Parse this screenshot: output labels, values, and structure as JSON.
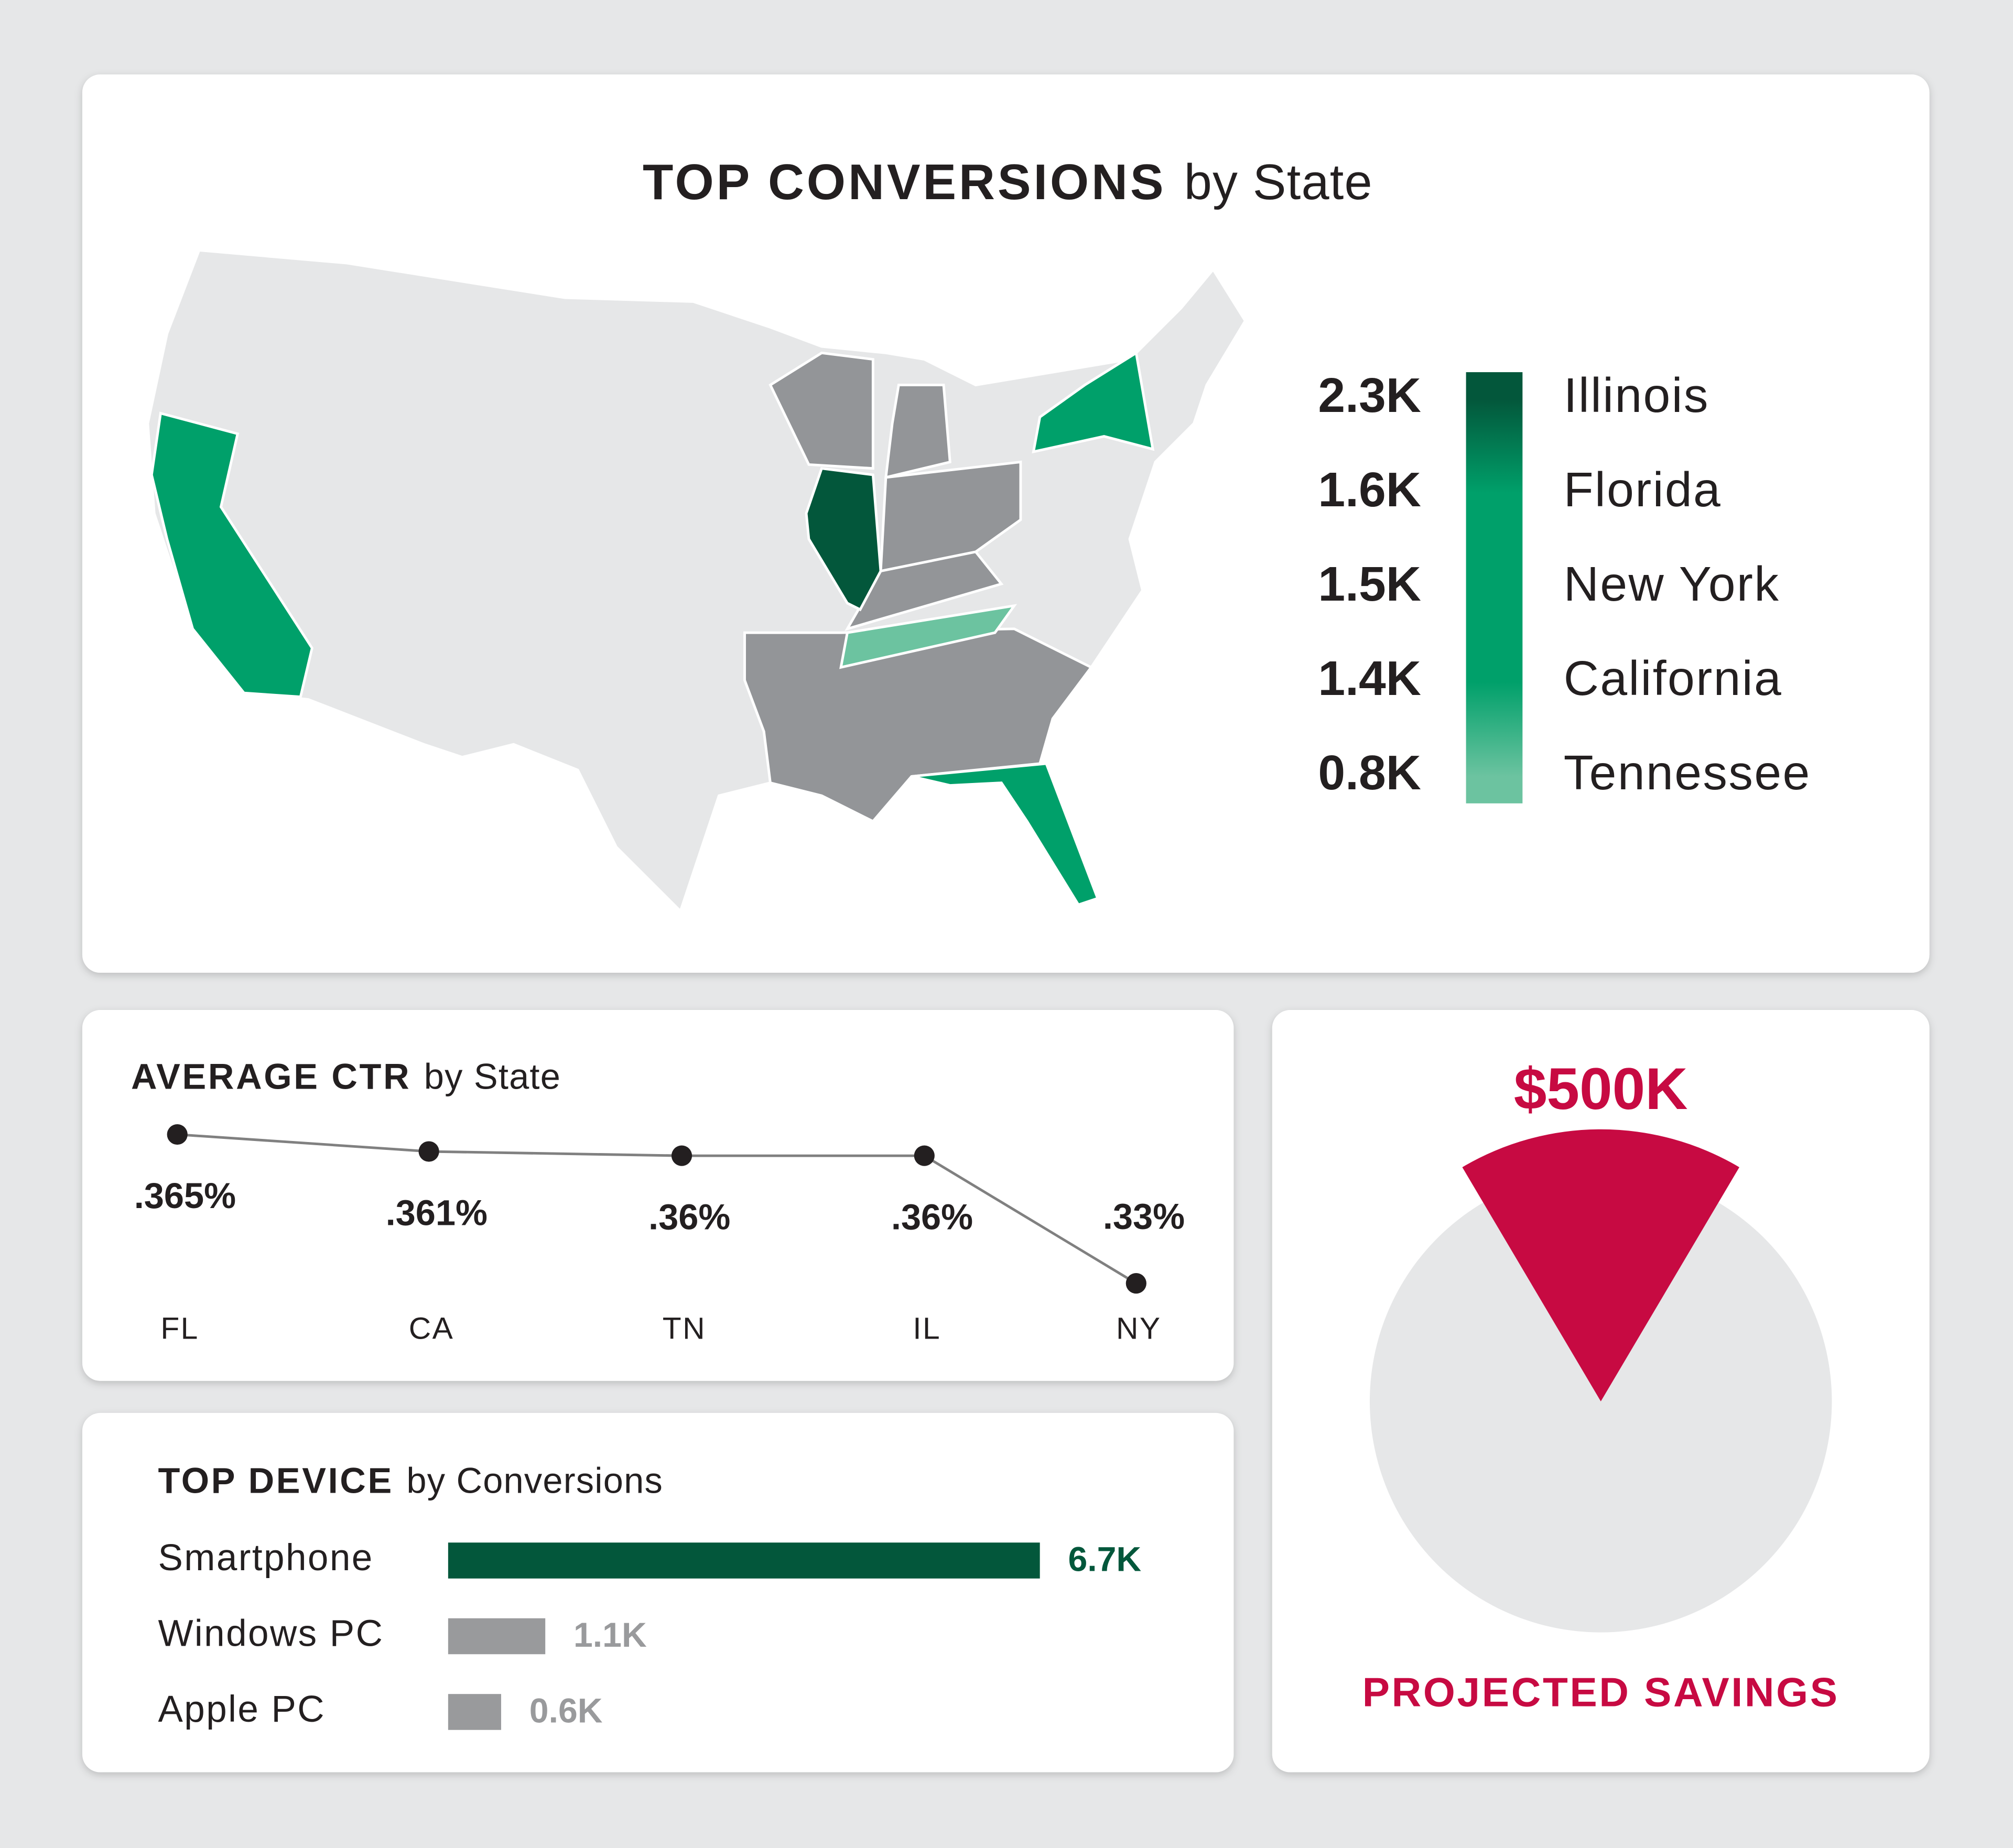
{
  "chart_data": [
    {
      "type": "map",
      "title": "TOP CONVERSIONS",
      "title_suffix": "by State",
      "categories": [
        "Illinois",
        "Florida",
        "New York",
        "California",
        "Tennessee"
      ],
      "values": [
        2300,
        1600,
        1500,
        1400,
        800
      ],
      "value_labels": [
        "2.3K",
        "1.6K",
        "1.5K",
        "1.4K",
        "0.8K"
      ],
      "colors": [
        "#03573b",
        "#00a06a",
        "#00a06a",
        "#00a06a",
        "#6cc3a0"
      ]
    },
    {
      "type": "line",
      "title": "AVERAGE CTR",
      "title_suffix": "by State",
      "categories": [
        "FL",
        "CA",
        "TN",
        "IL",
        "NY"
      ],
      "values": [
        0.365,
        0.361,
        0.36,
        0.36,
        0.33
      ],
      "value_labels": [
        ".365%",
        ".361%",
        ".36%",
        ".36%",
        ".33%"
      ],
      "color": "#231f20"
    },
    {
      "type": "bar",
      "title": "TOP DEVICE",
      "title_suffix": "by Conversions",
      "categories": [
        "Smartphone",
        "Windows PC",
        "Apple PC"
      ],
      "values": [
        6700,
        1100,
        600
      ],
      "value_labels": [
        "6.7K",
        "1.1K",
        "0.6K"
      ],
      "colors": [
        "#03573b",
        "#999a9c",
        "#999a9c"
      ]
    },
    {
      "type": "pie",
      "title": "$500K",
      "subtitle": "PROJECTED SAVINGS",
      "values": [
        17,
        83
      ],
      "colors": [
        "#c70a42",
        "#e6e7e8"
      ]
    }
  ]
}
